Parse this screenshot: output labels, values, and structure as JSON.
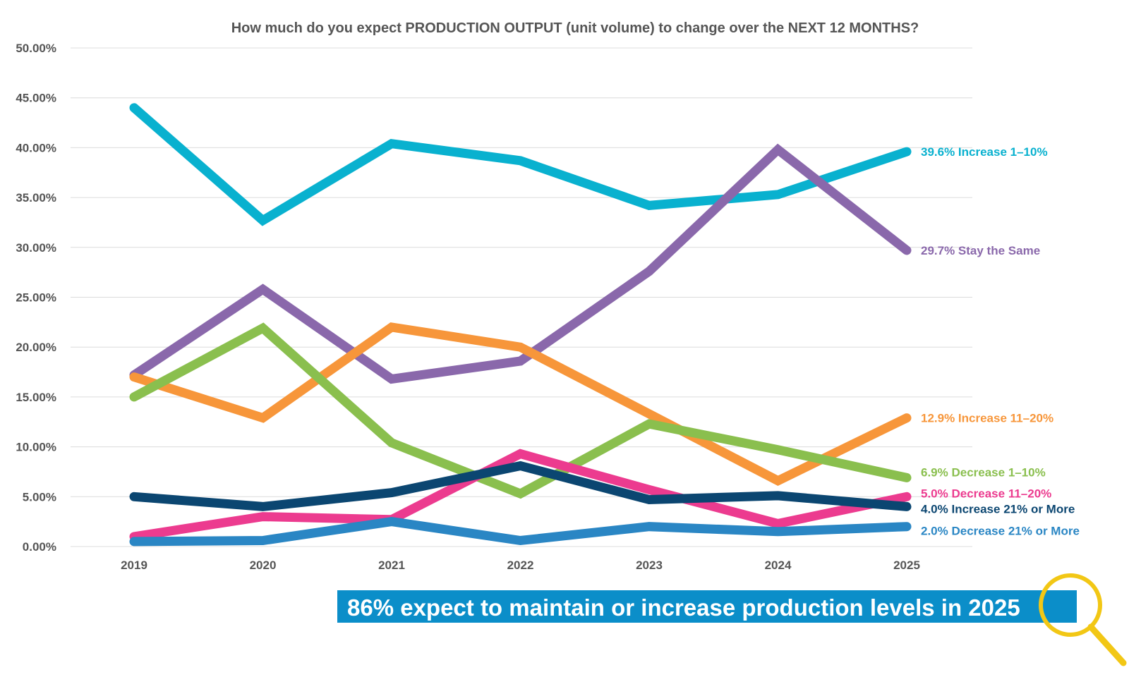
{
  "chart_data": {
    "type": "line",
    "title": "How much do you expect PRODUCTION OUTPUT (unit volume) to change over the NEXT 12 MONTHS?",
    "categories": [
      "2019",
      "2020",
      "2021",
      "2022",
      "2023",
      "2024",
      "2025"
    ],
    "ylim": [
      0,
      50
    ],
    "yticks": [
      "0.00%",
      "5.00%",
      "10.00%",
      "15.00%",
      "20.00%",
      "25.00%",
      "30.00%",
      "35.00%",
      "40.00%",
      "45.00%",
      "50.00%"
    ],
    "xlabel": "",
    "ylabel": "",
    "grid": true,
    "series": [
      {
        "name": "Increase 1–10%",
        "label": "39.6% Increase 1–10%",
        "color": "#09b1cf",
        "values": [
          44.0,
          32.7,
          40.4,
          38.7,
          34.2,
          35.3,
          39.6
        ]
      },
      {
        "name": "Stay the Same",
        "label": "29.7% Stay the Same",
        "color": "#8a68ab",
        "values": [
          17.2,
          25.8,
          16.8,
          18.6,
          27.6,
          39.8,
          29.7
        ]
      },
      {
        "name": "Increase 11–20%",
        "label": "12.9% Increase 11–20%",
        "color": "#f7963a",
        "values": [
          17.0,
          12.9,
          22.0,
          20.0,
          13.3,
          6.6,
          12.9
        ]
      },
      {
        "name": "Decrease 1–10%",
        "label": "6.9% Decrease 1–10%",
        "color": "#8abf4e",
        "values": [
          15.0,
          21.9,
          10.4,
          5.3,
          12.3,
          9.7,
          6.9
        ]
      },
      {
        "name": "Decrease 11–20%",
        "label": "5.0% Decrease 11–20%",
        "color": "#ec3b8f",
        "values": [
          1.0,
          3.0,
          2.7,
          9.3,
          5.7,
          2.3,
          5.0
        ]
      },
      {
        "name": "Increase 21% or More",
        "label": "4.0% Increase 21% or More",
        "color": "#0b4671",
        "values": [
          5.0,
          4.0,
          5.4,
          8.1,
          4.7,
          5.1,
          4.0
        ]
      },
      {
        "name": "Decrease 21% or More",
        "label": "2.0% Decrease 21% or More",
        "color": "#2a86c4",
        "values": [
          0.5,
          0.6,
          2.5,
          0.6,
          2.0,
          1.5,
          2.0
        ]
      }
    ],
    "annotation": "86% expect to maintain or increase production levels in 2025"
  },
  "colors": {
    "banner": "#0b8ec9",
    "magnifier": "#f2c715",
    "grid": "#dcdcdc",
    "axis_text": "#555555"
  },
  "icons": {
    "banner_icon": "magnifying-glass-icon"
  }
}
